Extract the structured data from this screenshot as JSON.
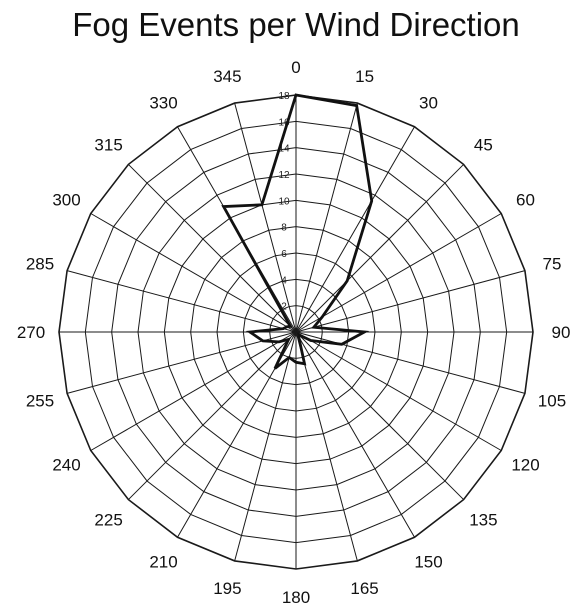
{
  "chart_data": {
    "type": "radar",
    "title": "Fog Events per Wind Direction",
    "direction_labels": [
      "0",
      "15",
      "30",
      "45",
      "60",
      "75",
      "90",
      "105",
      "120",
      "135",
      "150",
      "165",
      "180",
      "195",
      "210",
      "225",
      "240",
      "255",
      "270",
      "285",
      "300",
      "315",
      "330",
      "345"
    ],
    "radial_ticks": [
      "2",
      "4",
      "6",
      "8",
      "10",
      "12",
      "14",
      "16",
      "18"
    ],
    "rmax": 18,
    "series": [
      {
        "directions": [
          0,
          15,
          30,
          45,
          60,
          75,
          90,
          105,
          120,
          135,
          150,
          165,
          180,
          195,
          210,
          225,
          240,
          255,
          270,
          285,
          300,
          315,
          330,
          345
        ],
        "values": [
          18,
          17.8,
          11.5,
          5.5,
          2.3,
          1.4,
          5.2,
          3.6,
          1.3,
          0.3,
          0.4,
          2.5,
          2.3,
          2,
          3.2,
          0.8,
          1.5,
          2.6,
          3.5,
          1,
          0.8,
          0.6,
          11,
          10
        ]
      }
    ]
  }
}
